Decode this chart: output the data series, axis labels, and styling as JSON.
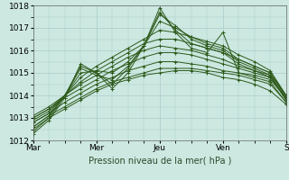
{
  "bg_color": "#cce8e0",
  "plot_bg_color": "#cce8e0",
  "grid_color": "#aacccc",
  "line_color": "#2d5a1b",
  "xlabel": "Pression niveau de la mer( hPa )",
  "ylim": [
    1012,
    1018
  ],
  "xlim": [
    0,
    96
  ],
  "yticks": [
    1012,
    1013,
    1014,
    1015,
    1016,
    1017,
    1018
  ],
  "xtick_positions": [
    0,
    24,
    48,
    72,
    96
  ],
  "xtick_labels": [
    "Mar",
    "Mer",
    "Jeu",
    "Ven",
    "S"
  ],
  "series": [
    [
      0,
      1012.5,
      6,
      1013.0,
      12,
      1013.4,
      18,
      1013.8,
      24,
      1014.2,
      30,
      1014.5,
      36,
      1014.7,
      42,
      1014.9,
      48,
      1015.0,
      54,
      1015.1,
      60,
      1015.1,
      66,
      1015.0,
      72,
      1014.8,
      78,
      1014.7,
      84,
      1014.5,
      90,
      1014.2,
      96,
      1013.6
    ],
    [
      0,
      1012.6,
      6,
      1013.1,
      12,
      1013.5,
      18,
      1013.9,
      24,
      1014.3,
      30,
      1014.6,
      36,
      1014.8,
      42,
      1015.0,
      48,
      1015.2,
      54,
      1015.2,
      60,
      1015.2,
      66,
      1015.1,
      72,
      1015.0,
      78,
      1014.9,
      84,
      1014.7,
      90,
      1014.5,
      96,
      1013.7
    ],
    [
      0,
      1012.8,
      6,
      1013.2,
      12,
      1013.7,
      18,
      1014.1,
      24,
      1014.5,
      30,
      1014.8,
      36,
      1015.1,
      42,
      1015.3,
      48,
      1015.5,
      54,
      1015.5,
      60,
      1015.4,
      66,
      1015.3,
      72,
      1015.1,
      78,
      1015.0,
      84,
      1014.8,
      90,
      1014.6,
      96,
      1013.7
    ],
    [
      0,
      1013.0,
      6,
      1013.4,
      12,
      1013.9,
      18,
      1014.3,
      24,
      1014.7,
      30,
      1015.1,
      36,
      1015.4,
      42,
      1015.7,
      48,
      1015.9,
      54,
      1015.9,
      60,
      1015.8,
      66,
      1015.6,
      72,
      1015.4,
      78,
      1015.2,
      84,
      1015.0,
      90,
      1014.8,
      96,
      1013.8
    ],
    [
      0,
      1013.1,
      6,
      1013.5,
      12,
      1014.0,
      18,
      1014.5,
      24,
      1014.9,
      30,
      1015.3,
      36,
      1015.7,
      42,
      1016.0,
      48,
      1016.2,
      54,
      1016.1,
      60,
      1016.0,
      66,
      1015.8,
      72,
      1015.6,
      78,
      1015.3,
      84,
      1015.1,
      90,
      1014.9,
      96,
      1013.8
    ],
    [
      0,
      1013.0,
      6,
      1013.4,
      12,
      1014.0,
      18,
      1014.6,
      24,
      1015.1,
      30,
      1015.5,
      36,
      1015.9,
      42,
      1016.3,
      48,
      1016.5,
      54,
      1016.5,
      60,
      1016.3,
      66,
      1016.1,
      72,
      1015.9,
      78,
      1015.6,
      84,
      1015.3,
      90,
      1015.0,
      96,
      1013.9
    ],
    [
      0,
      1012.9,
      6,
      1013.3,
      12,
      1014.0,
      18,
      1014.8,
      24,
      1015.3,
      30,
      1015.7,
      36,
      1016.1,
      42,
      1016.5,
      48,
      1016.9,
      54,
      1016.8,
      60,
      1016.6,
      66,
      1016.4,
      72,
      1016.2,
      78,
      1015.8,
      84,
      1015.5,
      90,
      1015.1,
      96,
      1014.0
    ],
    [
      0,
      1012.8,
      6,
      1013.2,
      12,
      1014.0,
      18,
      1015.0,
      24,
      1015.1,
      30,
      1015.0,
      36,
      1015.5,
      42,
      1016.2,
      48,
      1017.3,
      54,
      1017.0,
      60,
      1016.6,
      66,
      1016.3,
      72,
      1016.1,
      78,
      1015.6,
      84,
      1015.3,
      90,
      1015.0,
      96,
      1014.0
    ],
    [
      0,
      1012.6,
      6,
      1013.1,
      12,
      1014.0,
      18,
      1015.2,
      24,
      1014.9,
      30,
      1014.7,
      36,
      1015.3,
      42,
      1016.2,
      48,
      1017.6,
      54,
      1017.1,
      60,
      1016.5,
      66,
      1016.2,
      72,
      1016.0,
      78,
      1015.5,
      84,
      1015.2,
      90,
      1014.9,
      96,
      1014.0
    ],
    [
      0,
      1012.4,
      6,
      1013.0,
      12,
      1014.0,
      18,
      1015.3,
      24,
      1015.0,
      30,
      1014.5,
      36,
      1015.2,
      42,
      1016.2,
      48,
      1017.7,
      54,
      1016.9,
      60,
      1016.3,
      66,
      1016.1,
      72,
      1015.9,
      78,
      1015.4,
      84,
      1015.1,
      90,
      1014.8,
      96,
      1013.9
    ],
    [
      0,
      1012.3,
      6,
      1012.9,
      12,
      1013.9,
      18,
      1015.4,
      24,
      1015.0,
      30,
      1014.3,
      36,
      1015.0,
      42,
      1016.2,
      48,
      1017.9,
      54,
      1016.8,
      60,
      1016.1,
      66,
      1015.9,
      72,
      1016.8,
      78,
      1015.0,
      84,
      1014.9,
      90,
      1014.7,
      96,
      1013.9
    ]
  ]
}
